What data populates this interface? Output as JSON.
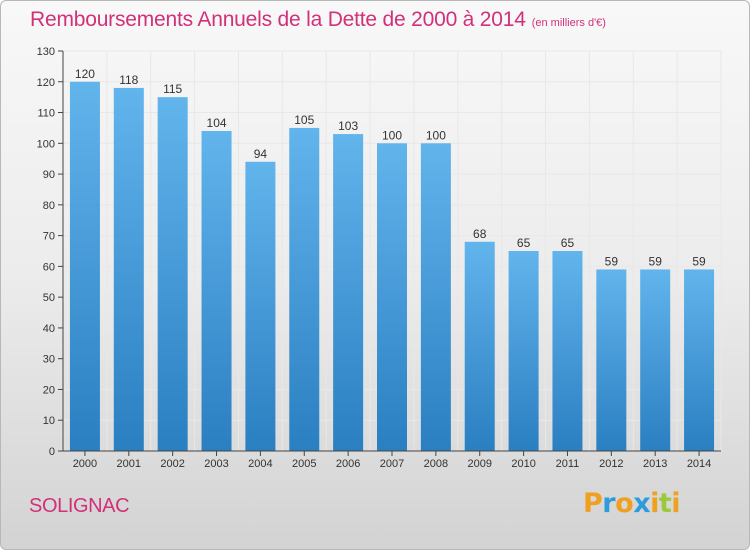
{
  "header": {
    "title": "Remboursements Annuels de la Dette de 2000 à 2014",
    "unit_note": "(en milliers d'€)"
  },
  "footer": {
    "place_name": "SOLIGNAC",
    "brand_name": "Proxiti"
  },
  "colors": {
    "title": "#d2317a",
    "bar_top": "#62b4ec",
    "bar_bottom": "#2a7fc1",
    "grid": "#e8e8e8",
    "axis": "#444444",
    "brand_letters": [
      "#f0a020",
      "#2e9bdc",
      "#f0a020",
      "#2e9bdc",
      "#f0a020",
      "#9cc93b",
      "#f0a020"
    ]
  },
  "chart_data": {
    "type": "bar",
    "title": "Remboursements Annuels de la Dette de 2000 à 2014",
    "xlabel": "",
    "ylabel": "",
    "categories": [
      "2000",
      "2001",
      "2002",
      "2003",
      "2004",
      "2005",
      "2006",
      "2007",
      "2008",
      "2009",
      "2010",
      "2011",
      "2012",
      "2013",
      "2014"
    ],
    "values": [
      120,
      118,
      115,
      104,
      94,
      105,
      103,
      100,
      100,
      68,
      65,
      65,
      59,
      59,
      59
    ],
    "ylim": [
      0,
      130
    ],
    "yticks": [
      0,
      10,
      20,
      30,
      40,
      50,
      60,
      70,
      80,
      90,
      100,
      110,
      120,
      130
    ],
    "grid": true,
    "data_labels": true,
    "legend": "none"
  }
}
